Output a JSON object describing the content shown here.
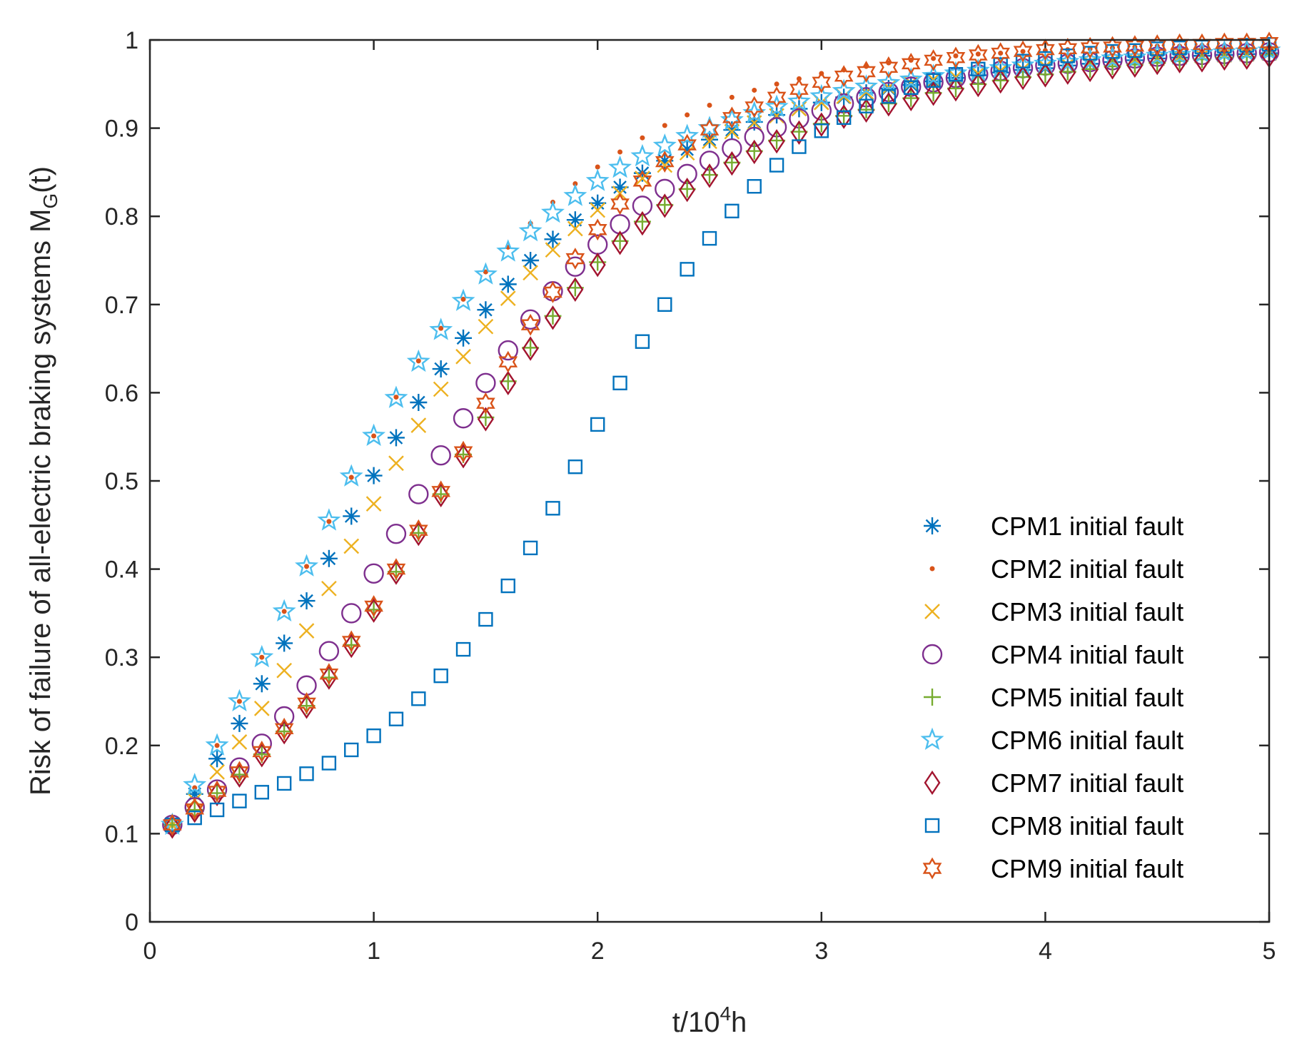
{
  "chart_data": {
    "type": "scatter",
    "title": "",
    "xlabel": {
      "base": "t/10",
      "sup": "4",
      "tail": "h"
    },
    "ylabel": {
      "base": "Risk of failure of all-electric braking systems M",
      "sub": "G",
      "tail": "(t)"
    },
    "xlim": [
      0,
      5
    ],
    "ylim": [
      0,
      1
    ],
    "xticks": [
      0,
      1,
      2,
      3,
      4,
      5
    ],
    "xtick_labels": [
      "0",
      "1",
      "2",
      "3",
      "4",
      "5"
    ],
    "yticks": [
      0,
      0.1,
      0.2,
      0.3,
      0.4,
      0.5,
      0.6,
      0.7,
      0.8,
      0.9,
      1
    ],
    "ytick_labels": [
      "0",
      "0.1",
      "0.2",
      "0.3",
      "0.4",
      "0.5",
      "0.6",
      "0.7",
      "0.8",
      "0.9",
      "1"
    ],
    "grid": false,
    "legend_position": "bottom-right",
    "x": [
      0.1,
      0.2,
      0.3,
      0.4,
      0.5,
      0.6,
      0.7,
      0.8,
      0.9,
      1.0,
      1.1,
      1.2,
      1.3,
      1.4,
      1.5,
      1.6,
      1.7,
      1.8,
      1.9,
      2.0,
      2.1,
      2.2,
      2.3,
      2.4,
      2.5,
      2.6,
      2.7,
      2.8,
      2.9,
      3.0,
      3.1,
      3.2,
      3.3,
      3.4,
      3.5,
      3.6,
      3.7,
      3.8,
      3.9,
      4.0,
      4.1,
      4.2,
      4.3,
      4.4,
      4.5,
      4.6,
      4.7,
      4.8,
      4.9,
      5.0
    ],
    "series": [
      {
        "name": "CPM1 initial fault",
        "marker": "asterisk",
        "color": "#0072BD",
        "values": [
          0.11,
          0.145,
          0.185,
          0.225,
          0.27,
          0.316,
          0.364,
          0.412,
          0.46,
          0.506,
          0.549,
          0.589,
          0.627,
          0.662,
          0.694,
          0.723,
          0.75,
          0.774,
          0.796,
          0.815,
          0.833,
          0.849,
          0.863,
          0.876,
          0.887,
          0.898,
          0.907,
          0.915,
          0.922,
          0.929,
          0.935,
          0.94,
          0.945,
          0.949,
          0.953,
          0.957,
          0.96,
          0.963,
          0.966,
          0.968,
          0.971,
          0.973,
          0.975,
          0.977,
          0.979,
          0.98,
          0.982,
          0.983,
          0.984,
          0.985
        ]
      },
      {
        "name": "CPM2 initial fault",
        "marker": "dot",
        "color": "#D95319",
        "values": [
          0.11,
          0.152,
          0.2,
          0.25,
          0.3,
          0.352,
          0.403,
          0.454,
          0.504,
          0.551,
          0.595,
          0.636,
          0.673,
          0.706,
          0.737,
          0.765,
          0.792,
          0.816,
          0.837,
          0.856,
          0.873,
          0.889,
          0.903,
          0.915,
          0.926,
          0.935,
          0.943,
          0.95,
          0.956,
          0.962,
          0.966,
          0.97,
          0.974,
          0.977,
          0.979,
          0.982,
          0.984,
          0.985,
          0.987,
          0.988,
          0.989,
          0.99,
          0.991,
          0.992,
          0.993,
          0.993,
          0.994,
          0.994,
          0.995,
          0.995
        ]
      },
      {
        "name": "CPM3 initial fault",
        "marker": "x",
        "color": "#EDB120",
        "values": [
          0.11,
          0.138,
          0.17,
          0.204,
          0.242,
          0.285,
          0.33,
          0.378,
          0.426,
          0.474,
          0.52,
          0.563,
          0.604,
          0.641,
          0.675,
          0.707,
          0.736,
          0.762,
          0.786,
          0.807,
          0.826,
          0.843,
          0.858,
          0.872,
          0.885,
          0.896,
          0.906,
          0.914,
          0.922,
          0.929,
          0.936,
          0.941,
          0.946,
          0.951,
          0.955,
          0.958,
          0.962,
          0.965,
          0.967,
          0.97,
          0.972,
          0.974,
          0.976,
          0.978,
          0.979,
          0.981,
          0.982,
          0.983,
          0.984,
          0.985
        ]
      },
      {
        "name": "CPM4 initial fault",
        "marker": "circle",
        "color": "#7E2F8E",
        "values": [
          0.11,
          0.13,
          0.15,
          0.175,
          0.202,
          0.233,
          0.268,
          0.307,
          0.35,
          0.395,
          0.44,
          0.485,
          0.529,
          0.571,
          0.611,
          0.648,
          0.683,
          0.715,
          0.743,
          0.768,
          0.791,
          0.812,
          0.831,
          0.848,
          0.863,
          0.877,
          0.89,
          0.901,
          0.911,
          0.92,
          0.928,
          0.935,
          0.941,
          0.947,
          0.952,
          0.957,
          0.961,
          0.965,
          0.968,
          0.971,
          0.973,
          0.975,
          0.977,
          0.979,
          0.981,
          0.982,
          0.983,
          0.984,
          0.985,
          0.986
        ]
      },
      {
        "name": "CPM5 initial fault",
        "marker": "plus",
        "color": "#77AC30",
        "values": [
          0.11,
          0.127,
          0.146,
          0.167,
          0.19,
          0.216,
          0.245,
          0.277,
          0.314,
          0.354,
          0.397,
          0.441,
          0.485,
          0.53,
          0.572,
          0.613,
          0.651,
          0.687,
          0.719,
          0.748,
          0.772,
          0.794,
          0.813,
          0.831,
          0.847,
          0.861,
          0.874,
          0.886,
          0.896,
          0.905,
          0.914,
          0.921,
          0.928,
          0.934,
          0.94,
          0.945,
          0.95,
          0.954,
          0.958,
          0.961,
          0.964,
          0.967,
          0.97,
          0.972,
          0.974,
          0.976,
          0.978,
          0.98,
          0.981,
          0.983
        ]
      },
      {
        "name": "CPM6 initial fault",
        "marker": "pentagram",
        "color": "#4DBEEE",
        "values": [
          0.11,
          0.155,
          0.2,
          0.25,
          0.3,
          0.352,
          0.403,
          0.455,
          0.505,
          0.551,
          0.594,
          0.635,
          0.671,
          0.704,
          0.734,
          0.76,
          0.783,
          0.804,
          0.823,
          0.84,
          0.855,
          0.868,
          0.88,
          0.891,
          0.9,
          0.909,
          0.917,
          0.924,
          0.93,
          0.936,
          0.942,
          0.947,
          0.951,
          0.955,
          0.959,
          0.962,
          0.965,
          0.968,
          0.971,
          0.973,
          0.975,
          0.977,
          0.979,
          0.98,
          0.982,
          0.983,
          0.985,
          0.986,
          0.987,
          0.988
        ]
      },
      {
        "name": "CPM7 initial fault",
        "marker": "diamond",
        "color": "#A2142F",
        "values": [
          0.108,
          0.126,
          0.145,
          0.166,
          0.189,
          0.215,
          0.244,
          0.277,
          0.313,
          0.353,
          0.396,
          0.44,
          0.484,
          0.528,
          0.57,
          0.611,
          0.65,
          0.685,
          0.717,
          0.745,
          0.77,
          0.792,
          0.812,
          0.83,
          0.846,
          0.86,
          0.873,
          0.885,
          0.895,
          0.904,
          0.913,
          0.92,
          0.927,
          0.933,
          0.939,
          0.944,
          0.949,
          0.953,
          0.957,
          0.96,
          0.963,
          0.966,
          0.969,
          0.971,
          0.974,
          0.976,
          0.977,
          0.979,
          0.98,
          0.982
        ]
      },
      {
        "name": "CPM8 initial fault",
        "marker": "square",
        "color": "#0072BD",
        "values": [
          0.11,
          0.118,
          0.127,
          0.137,
          0.147,
          0.157,
          0.168,
          0.18,
          0.195,
          0.211,
          0.23,
          0.253,
          0.279,
          0.309,
          0.343,
          0.381,
          0.424,
          0.469,
          0.516,
          0.564,
          0.611,
          0.658,
          0.7,
          0.74,
          0.775,
          0.806,
          0.834,
          0.858,
          0.879,
          0.897,
          0.912,
          0.925,
          0.936,
          0.946,
          0.954,
          0.961,
          0.967,
          0.972,
          0.976,
          0.979,
          0.982,
          0.985,
          0.987,
          0.988,
          0.99,
          0.991,
          0.992,
          0.993,
          0.994,
          0.995
        ]
      },
      {
        "name": "CPM9 initial fault",
        "marker": "hexagram",
        "color": "#D95319",
        "values": [
          0.11,
          0.128,
          0.148,
          0.17,
          0.193,
          0.219,
          0.248,
          0.281,
          0.318,
          0.358,
          0.4,
          0.444,
          0.488,
          0.533,
          0.588,
          0.635,
          0.677,
          0.714,
          0.752,
          0.785,
          0.814,
          0.84,
          0.862,
          0.881,
          0.898,
          0.912,
          0.924,
          0.935,
          0.944,
          0.952,
          0.959,
          0.964,
          0.969,
          0.973,
          0.977,
          0.98,
          0.983,
          0.985,
          0.987,
          0.989,
          0.99,
          0.991,
          0.992,
          0.993,
          0.994,
          0.995,
          0.995,
          0.996,
          0.996,
          0.997
        ]
      }
    ]
  }
}
